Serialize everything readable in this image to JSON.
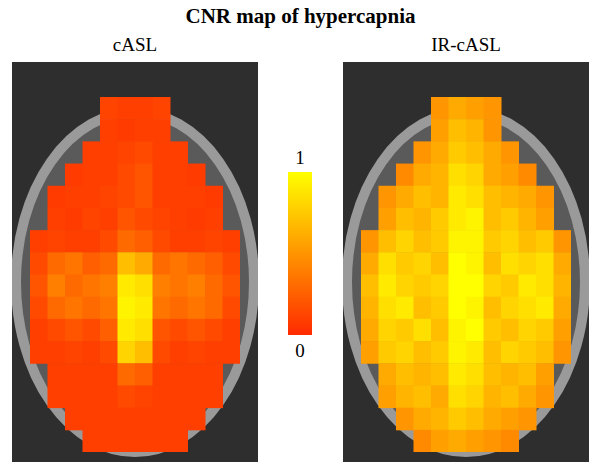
{
  "title": "CNR map of hypercapnia",
  "colorbar": {
    "range": [
      0,
      1
    ],
    "ticks": [
      0,
      1
    ],
    "colors": [
      "#ff2a00",
      "#ffff00"
    ]
  },
  "chart_data": [
    {
      "type": "heatmap",
      "title": "cASL",
      "tick_labels": false,
      "cells": [
        [
          null,
          null,
          null,
          null,
          0.12,
          0.1,
          0.1,
          0.12,
          null,
          null,
          null,
          null
        ],
        [
          null,
          null,
          null,
          null,
          0.1,
          0.08,
          0.1,
          0.1,
          null,
          null,
          null,
          null
        ],
        [
          null,
          null,
          null,
          0.1,
          0.1,
          0.12,
          0.15,
          0.1,
          0.1,
          null,
          null,
          null
        ],
        [
          null,
          null,
          0.08,
          0.1,
          0.1,
          0.15,
          0.2,
          0.1,
          0.1,
          0.08,
          null,
          null
        ],
        [
          null,
          0.08,
          0.1,
          0.1,
          0.12,
          0.15,
          0.2,
          0.1,
          0.1,
          0.1,
          0.08,
          null
        ],
        [
          null,
          0.1,
          0.08,
          0.12,
          0.1,
          0.2,
          0.15,
          0.12,
          0.1,
          0.08,
          0.1,
          null
        ],
        [
          0.1,
          0.12,
          0.1,
          0.1,
          0.15,
          0.3,
          0.25,
          0.15,
          0.1,
          0.1,
          0.12,
          0.1
        ],
        [
          0.15,
          0.3,
          0.35,
          0.25,
          0.3,
          0.7,
          0.6,
          0.3,
          0.35,
          0.3,
          0.25,
          0.15
        ],
        [
          0.2,
          0.4,
          0.3,
          0.35,
          0.4,
          0.9,
          0.85,
          0.4,
          0.35,
          0.4,
          0.3,
          0.2
        ],
        [
          0.15,
          0.3,
          0.35,
          0.3,
          0.35,
          0.95,
          0.9,
          0.35,
          0.3,
          0.35,
          0.3,
          0.15
        ],
        [
          0.1,
          0.15,
          0.2,
          0.15,
          0.25,
          0.9,
          0.85,
          0.2,
          0.15,
          0.2,
          0.15,
          0.1
        ],
        [
          0.1,
          0.1,
          0.12,
          0.1,
          0.15,
          0.8,
          0.7,
          0.15,
          0.1,
          0.12,
          0.1,
          0.1
        ],
        [
          null,
          0.1,
          0.1,
          0.1,
          0.1,
          0.3,
          0.25,
          0.1,
          0.1,
          0.1,
          0.1,
          null
        ],
        [
          null,
          0.1,
          0.1,
          0.1,
          0.1,
          0.15,
          0.12,
          0.1,
          0.1,
          0.1,
          0.1,
          null
        ],
        [
          null,
          null,
          0.1,
          0.1,
          0.1,
          0.1,
          0.1,
          0.1,
          0.1,
          0.1,
          null,
          null
        ],
        [
          null,
          null,
          null,
          0.1,
          0.1,
          0.1,
          0.1,
          0.1,
          0.1,
          null,
          null,
          null
        ]
      ]
    },
    {
      "type": "heatmap",
      "title": "IR-cASL",
      "tick_labels": false,
      "cells": [
        [
          null,
          null,
          null,
          null,
          0.5,
          0.6,
          0.55,
          0.5,
          null,
          null,
          null,
          null
        ],
        [
          null,
          null,
          null,
          null,
          0.55,
          0.7,
          0.65,
          0.5,
          null,
          null,
          null,
          null
        ],
        [
          null,
          null,
          null,
          0.5,
          0.6,
          0.75,
          0.7,
          0.6,
          0.5,
          null,
          null,
          null
        ],
        [
          null,
          null,
          0.45,
          0.6,
          0.65,
          0.85,
          0.8,
          0.6,
          0.55,
          0.45,
          null,
          null
        ],
        [
          null,
          0.5,
          0.6,
          0.7,
          0.65,
          0.9,
          0.85,
          0.7,
          0.65,
          0.6,
          0.5,
          null
        ],
        [
          null,
          0.55,
          0.7,
          0.65,
          0.75,
          0.9,
          0.95,
          0.7,
          0.75,
          0.65,
          0.55,
          null
        ],
        [
          0.5,
          0.7,
          0.8,
          0.7,
          0.75,
          0.95,
          0.95,
          0.75,
          0.8,
          0.7,
          0.75,
          0.5
        ],
        [
          0.6,
          0.85,
          0.75,
          0.8,
          0.7,
          1,
          0.95,
          0.7,
          0.85,
          0.8,
          0.85,
          0.6
        ],
        [
          0.7,
          0.9,
          0.8,
          0.75,
          0.8,
          1,
          1,
          0.8,
          0.75,
          0.9,
          0.85,
          0.65
        ],
        [
          0.65,
          0.85,
          0.9,
          0.7,
          0.75,
          1,
          0.95,
          0.7,
          0.8,
          0.85,
          0.9,
          0.6
        ],
        [
          0.6,
          0.8,
          0.75,
          0.85,
          0.7,
          0.95,
          1,
          0.75,
          0.7,
          0.8,
          0.75,
          0.55
        ],
        [
          0.55,
          0.75,
          0.8,
          0.7,
          0.75,
          0.95,
          0.9,
          0.7,
          0.8,
          0.75,
          0.7,
          0.5
        ],
        [
          null,
          0.6,
          0.7,
          0.65,
          0.7,
          0.9,
          0.85,
          0.7,
          0.65,
          0.7,
          0.55,
          null
        ],
        [
          null,
          0.55,
          0.65,
          0.7,
          0.6,
          0.85,
          0.8,
          0.65,
          0.7,
          0.6,
          0.5,
          null
        ],
        [
          null,
          null,
          0.5,
          0.6,
          0.65,
          0.75,
          0.7,
          0.6,
          0.55,
          0.5,
          null,
          null
        ],
        [
          null,
          null,
          null,
          0.45,
          0.55,
          0.6,
          0.55,
          0.5,
          0.45,
          null,
          null,
          null
        ]
      ]
    }
  ]
}
